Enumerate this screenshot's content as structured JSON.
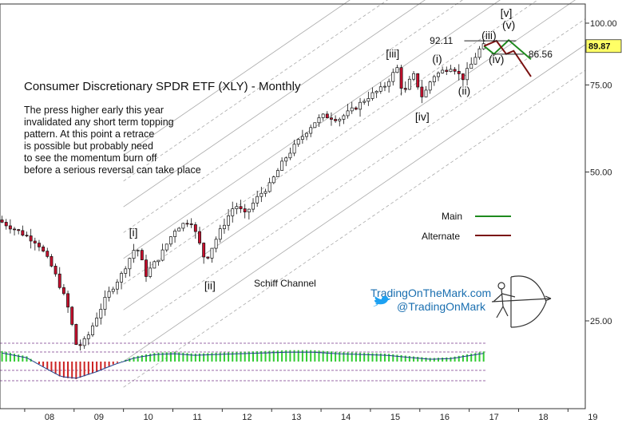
{
  "chart_data": {
    "type": "candlestick",
    "title": "Consumer Discretionary SPDR ETF (XLY) - Monthly",
    "annotation_text": [
      "The press higher early this year",
      "invalidated any short term topping",
      "pattern. At this point a retrace",
      "is possible but probably need",
      "to see the momentum burn off",
      "before a serious reversal can take place"
    ],
    "y_axis": {
      "scale": "log",
      "ticks": [
        {
          "value": 100,
          "label": "100.00"
        },
        {
          "value": 75,
          "label": "75.00"
        },
        {
          "value": 50,
          "label": "50.00"
        },
        {
          "value": 25,
          "label": "25.00"
        }
      ]
    },
    "x_axis": {
      "ticks": [
        {
          "value": 2008,
          "label": "08"
        },
        {
          "value": 2009,
          "label": "09"
        },
        {
          "value": 2010,
          "label": "10"
        },
        {
          "value": 2011,
          "label": "11"
        },
        {
          "value": 2012,
          "label": "12"
        },
        {
          "value": 2013,
          "label": "13"
        },
        {
          "value": 2014,
          "label": "14"
        },
        {
          "value": 2015,
          "label": "15"
        },
        {
          "value": 2016,
          "label": "16"
        },
        {
          "value": 2017,
          "label": "17"
        },
        {
          "value": 2018,
          "label": "18"
        },
        {
          "value": 2019,
          "label": "19"
        }
      ]
    },
    "last_price": "89.87",
    "price_path": [
      [
        2007.5,
        40
      ],
      [
        2007.9,
        38
      ],
      [
        2008.3,
        36
      ],
      [
        2008.6,
        32
      ],
      [
        2008.9,
        27
      ],
      [
        2009.1,
        22
      ],
      [
        2009.3,
        23
      ],
      [
        2009.7,
        28
      ],
      [
        2010.0,
        31
      ],
      [
        2010.3,
        35.5
      ],
      [
        2010.5,
        31
      ],
      [
        2010.8,
        34
      ],
      [
        2011.1,
        38.5
      ],
      [
        2011.4,
        40
      ],
      [
        2011.7,
        33
      ],
      [
        2012.0,
        38
      ],
      [
        2012.3,
        43
      ],
      [
        2012.5,
        41
      ],
      [
        2012.8,
        45
      ],
      [
        2013.0,
        47
      ],
      [
        2013.3,
        53
      ],
      [
        2013.6,
        58
      ],
      [
        2013.9,
        63
      ],
      [
        2014.1,
        65
      ],
      [
        2014.4,
        64
      ],
      [
        2014.7,
        67
      ],
      [
        2015.0,
        71
      ],
      [
        2015.3,
        74
      ],
      [
        2015.6,
        81.5
      ],
      [
        2015.7,
        71
      ],
      [
        2015.9,
        79
      ],
      [
        2016.1,
        70.5
      ],
      [
        2016.3,
        78
      ],
      [
        2016.5,
        80
      ],
      [
        2016.7,
        82
      ],
      [
        2016.9,
        77
      ],
      [
        2017.1,
        83
      ],
      [
        2017.2,
        87
      ],
      [
        2017.3,
        89.87
      ]
    ],
    "waves": [
      {
        "label": "[i]",
        "x": 2010.2,
        "price": 36.5,
        "pos": "above"
      },
      {
        "label": "[ii]",
        "x": 2011.75,
        "price": 30.5,
        "pos": "below"
      },
      {
        "label": "[iii]",
        "x": 2015.45,
        "price": 84,
        "pos": "above"
      },
      {
        "label": "[iv]",
        "x": 2016.05,
        "price": 67,
        "pos": "below"
      },
      {
        "label": "(i)",
        "x": 2016.35,
        "price": 82,
        "pos": "above"
      },
      {
        "label": "(ii)",
        "x": 2016.9,
        "price": 75.5,
        "pos": "below"
      },
      {
        "label": "(iii)",
        "x": 2017.4,
        "price": 91.5,
        "pos": "above"
      },
      {
        "label": "(iv)",
        "x": 2017.55,
        "price": 87.5,
        "pos": "below"
      },
      {
        "label": "(v)",
        "x": 2017.8,
        "price": 96,
        "pos": "above"
      },
      {
        "label": "[v]",
        "x": 2017.75,
        "price": 101.5,
        "pos": "above"
      }
    ],
    "levels": [
      {
        "label": "92.11",
        "value": 92.11
      },
      {
        "label": "86.56",
        "value": 86.56
      }
    ],
    "scenarios": [
      {
        "name": "Main",
        "color": "#1e8a1e",
        "points": [
          [
            2017.3,
            89.87
          ],
          [
            2017.5,
            86.6
          ],
          [
            2017.8,
            92.4
          ],
          [
            2018.25,
            84.5
          ]
        ]
      },
      {
        "name": "Alternate",
        "color": "#7a1010",
        "points": [
          [
            2017.3,
            89.87
          ],
          [
            2017.55,
            92.1
          ],
          [
            2017.75,
            86.6
          ],
          [
            2017.9,
            87.9
          ],
          [
            2018.25,
            78
          ]
        ]
      }
    ],
    "channel_label": "Schiff Channel",
    "indicator": {
      "type": "momentum-histogram",
      "series_x": [
        2007.5,
        2008.0,
        2008.4,
        2008.7,
        2009.0,
        2009.4,
        2009.8,
        2010.2,
        2010.6,
        2011.0,
        2011.4,
        2011.8,
        2012.3,
        2012.8,
        2013.3,
        2013.8,
        2014.3,
        2014.8,
        2015.3,
        2015.8,
        2016.2,
        2016.6,
        2017.0,
        2017.3
      ],
      "values": [
        0.6,
        0.3,
        -0.4,
        -0.9,
        -1.0,
        -0.6,
        -0.1,
        0.3,
        0.5,
        0.55,
        0.45,
        0.5,
        0.55,
        0.6,
        0.65,
        0.65,
        0.55,
        0.5,
        0.45,
        0.3,
        0.2,
        0.25,
        0.45,
        0.6
      ]
    }
  },
  "legend": {
    "main_label": "Main",
    "alternate_label": "Alternate"
  },
  "branding": {
    "site": "TradingOnTheMark.com",
    "twitter": "@TradingOnMark"
  },
  "colors": {
    "main": "#1e8a1e",
    "alternate": "#7a1010",
    "up_candle": "#ffffff",
    "down_candle": "#c8102e",
    "hist_up": "#33cc33",
    "hist_down": "#cc2222",
    "price_tag": "#ffff66",
    "brand": "#1a6fb0"
  }
}
